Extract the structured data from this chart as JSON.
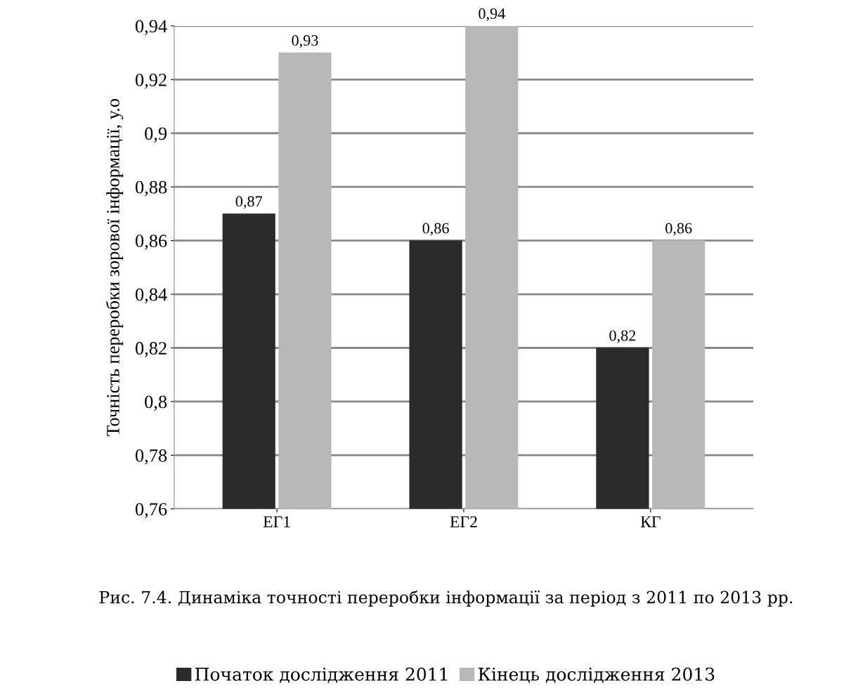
{
  "chart_data": {
    "type": "bar",
    "title": "Рис. 7.4. Динаміка точності переробки інформації за період з 2011 по 2013 рр.",
    "ylabel": "Точність переробки зорової інформації, у.о",
    "categories": [
      "ЕГ1",
      "ЕГ2",
      "КГ"
    ],
    "series": [
      {
        "name": "Початок дослідження 2011",
        "color": "#2b2b2b",
        "values": [
          0.87,
          0.86,
          0.82
        ],
        "value_labels": [
          "0,87",
          "0,86",
          "0,82"
        ]
      },
      {
        "name": "Кінець дослідження 2013",
        "color": "#b8b8b8",
        "values": [
          0.93,
          0.94,
          0.86
        ],
        "value_labels": [
          "0,93",
          "0,94",
          "0,86"
        ]
      }
    ],
    "ylim": [
      0.76,
      0.94
    ],
    "yticks": [
      {
        "value": 0.76,
        "label": "0,76"
      },
      {
        "value": 0.78,
        "label": "0,78"
      },
      {
        "value": 0.8,
        "label": "0,8"
      },
      {
        "value": 0.82,
        "label": "0,82"
      },
      {
        "value": 0.84,
        "label": "0,84"
      },
      {
        "value": 0.86,
        "label": "0,86"
      },
      {
        "value": 0.88,
        "label": "0,88"
      },
      {
        "value": 0.9,
        "label": "0,9"
      },
      {
        "value": 0.92,
        "label": "0,92"
      },
      {
        "value": 0.94,
        "label": "0,94"
      }
    ],
    "grid": "y",
    "legend": "bottom"
  }
}
